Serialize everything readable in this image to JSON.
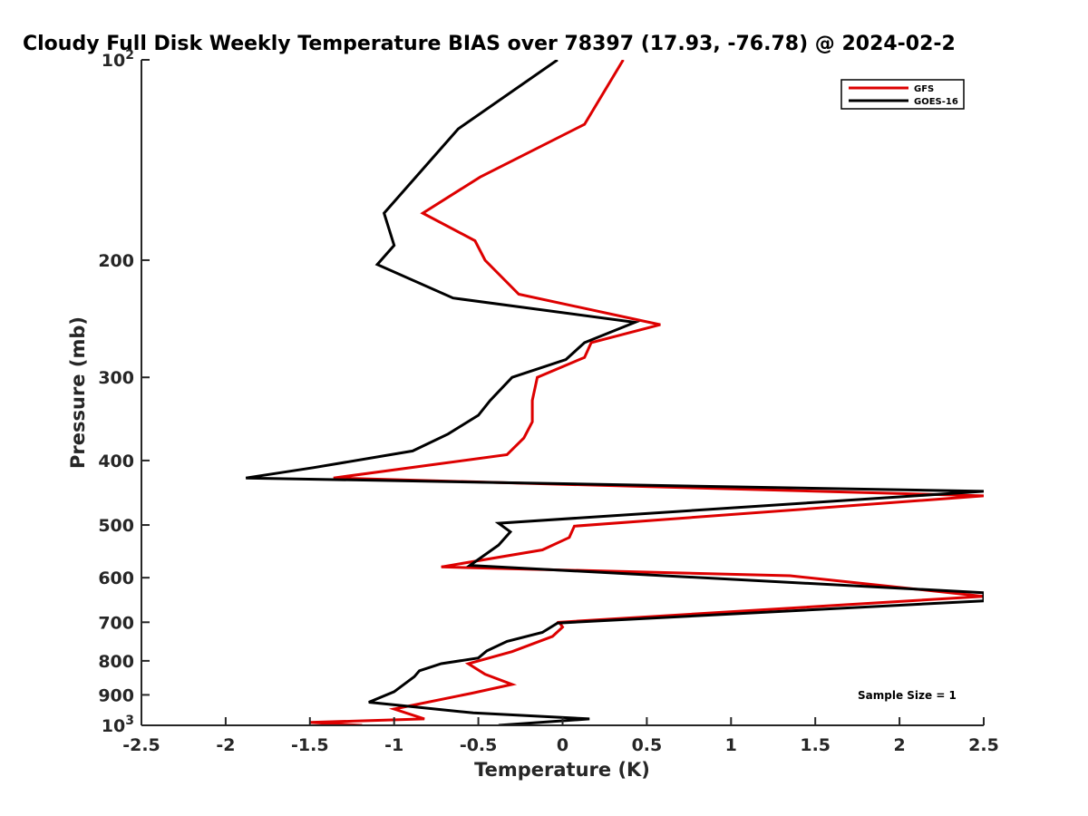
{
  "chart_data": {
    "type": "line",
    "title": "Cloudy Full Disk Weekly Temperature BIAS over 78397 (17.93, -76.78) @ 2024-02-2",
    "xlabel": "Temperature (K)",
    "ylabel": "Pressure (mb)",
    "xlim": [
      -2.5,
      2.5
    ],
    "ylim": [
      100,
      1000
    ],
    "y_scale": "log",
    "y_reversed": true,
    "x_ticks": [
      {
        "value": -2.5,
        "label": "-2.5"
      },
      {
        "value": -2,
        "label": "-2"
      },
      {
        "value": -1.5,
        "label": "-1.5"
      },
      {
        "value": -1,
        "label": "-1"
      },
      {
        "value": -0.5,
        "label": "-0.5"
      },
      {
        "value": 0,
        "label": "0"
      },
      {
        "value": 0.5,
        "label": "0.5"
      },
      {
        "value": 1,
        "label": "1"
      },
      {
        "value": 1.5,
        "label": "1.5"
      },
      {
        "value": 2,
        "label": "2"
      },
      {
        "value": 2.5,
        "label": "2.5"
      }
    ],
    "y_ticks": [
      {
        "value": 100,
        "label": "10",
        "exp": "2"
      },
      {
        "value": 200,
        "label": "200"
      },
      {
        "value": 300,
        "label": "300"
      },
      {
        "value": 400,
        "label": "400"
      },
      {
        "value": 500,
        "label": "500"
      },
      {
        "value": 600,
        "label": "600"
      },
      {
        "value": 700,
        "label": "700"
      },
      {
        "value": 800,
        "label": "800"
      },
      {
        "value": 900,
        "label": "900"
      },
      {
        "value": 1000,
        "label": "10",
        "exp": "3"
      }
    ],
    "grid": false,
    "legend_position": "top-right",
    "annotation": "Sample Size = 1",
    "series": [
      {
        "name": "GFS",
        "color": "#dd0000",
        "points": [
          [
            0.36,
            100
          ],
          [
            0.13,
            125
          ],
          [
            -0.49,
            150
          ],
          [
            -0.83,
            170
          ],
          [
            -0.52,
            187
          ],
          [
            -0.46,
            200
          ],
          [
            -0.26,
            225
          ],
          [
            0.58,
            250
          ],
          [
            0.17,
            266
          ],
          [
            0.13,
            280
          ],
          [
            -0.15,
            300
          ],
          [
            -0.18,
            325
          ],
          [
            -0.18,
            350
          ],
          [
            -0.23,
            370
          ],
          [
            -0.33,
            392
          ],
          [
            -1.36,
            425
          ],
          [
            2.5,
            452
          ],
          [
            0.07,
            502
          ],
          [
            0.04,
            522
          ],
          [
            -0.12,
            545
          ],
          [
            -0.72,
            578
          ],
          [
            1.35,
            596
          ],
          [
            2.5,
            640
          ],
          [
            -0.02,
            700
          ],
          [
            0.0,
            712
          ],
          [
            -0.06,
            735
          ],
          [
            -0.3,
            775
          ],
          [
            -0.56,
            808
          ],
          [
            -0.46,
            838
          ],
          [
            -0.3,
            868
          ],
          [
            -0.54,
            895
          ],
          [
            -1.0,
            945
          ],
          [
            -0.82,
            978
          ],
          [
            -1.5,
            990
          ],
          [
            -1.19,
            1000
          ]
        ]
      },
      {
        "name": "GOES-16",
        "color": "#000000",
        "points": [
          [
            -0.03,
            100
          ],
          [
            -0.62,
            127
          ],
          [
            -1.06,
            170
          ],
          [
            -1.0,
            190
          ],
          [
            -1.1,
            203
          ],
          [
            -0.65,
            228
          ],
          [
            0.43,
            248
          ],
          [
            0.13,
            266
          ],
          [
            0.02,
            282
          ],
          [
            -0.3,
            300
          ],
          [
            -0.43,
            325
          ],
          [
            -0.5,
            342
          ],
          [
            -0.68,
            365
          ],
          [
            -0.89,
            387
          ],
          [
            -1.48,
            410
          ],
          [
            -1.88,
            425
          ],
          [
            2.5,
            445
          ],
          [
            -0.38,
            497
          ],
          [
            -0.31,
            512
          ],
          [
            -0.38,
            536
          ],
          [
            -0.55,
            575
          ],
          [
            2.5,
            632
          ],
          [
            2.5,
            650
          ],
          [
            -0.03,
            702
          ],
          [
            -0.12,
            725
          ],
          [
            -0.33,
            748
          ],
          [
            -0.45,
            773
          ],
          [
            -0.5,
            792
          ],
          [
            -0.72,
            808
          ],
          [
            -0.85,
            828
          ],
          [
            -0.88,
            845
          ],
          [
            -1.0,
            890
          ],
          [
            -1.15,
            923
          ],
          [
            -0.53,
            958
          ],
          [
            0.16,
            978
          ],
          [
            -0.38,
            1000
          ]
        ]
      }
    ]
  }
}
